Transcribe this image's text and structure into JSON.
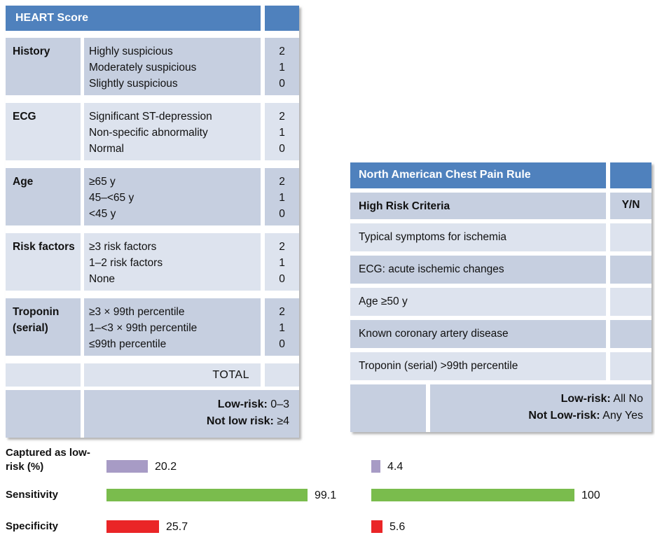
{
  "heart_table": {
    "title": "HEART Score",
    "rows": [
      {
        "category": "History",
        "options": [
          "Highly suspicious",
          "Moderately suspicious",
          "Slightly suspicious"
        ],
        "points": [
          "2",
          "1",
          "0"
        ]
      },
      {
        "category": "ECG",
        "options": [
          "Significant ST-depression",
          "Non-specific abnormality",
          "Normal"
        ],
        "points": [
          "2",
          "1",
          "0"
        ]
      },
      {
        "category": "Age",
        "options": [
          "≥65 y",
          "45–<65 y",
          "<45 y"
        ],
        "points": [
          "2",
          "1",
          "0"
        ]
      },
      {
        "category": "Risk factors",
        "options": [
          "≥3 risk factors",
          "1–2 risk factors",
          "None"
        ],
        "points": [
          "2",
          "1",
          "0"
        ]
      },
      {
        "category": "Troponin (serial)",
        "options": [
          "≥3 × 99th percentile",
          "1–<3 × 99th percentile",
          "≤99th percentile"
        ],
        "points": [
          "2",
          "1",
          "0"
        ]
      }
    ],
    "total_label": "TOTAL",
    "low_risk_label": "Low-risk:",
    "low_risk_value": "0–3",
    "not_low_risk_label": "Not low risk:",
    "not_low_risk_value": "≥4"
  },
  "nacpr_table": {
    "title": "North American Chest Pain Rule",
    "criteria_header": "High Risk Criteria",
    "yn_header": "Y/N",
    "criteria": [
      "Typical symptoms for ischemia",
      "ECG: acute ischemic changes",
      "Age ≥50 y",
      "Known coronary artery disease",
      "Troponin (serial) >99th percentile"
    ],
    "low_risk_label": "Low-risk:",
    "low_risk_value": "All No",
    "not_low_risk_label": "Not Low-risk:",
    "not_low_risk_value": "Any Yes"
  },
  "chart_data": {
    "type": "bar",
    "orientation": "horizontal",
    "categories": [
      "Captured as low-risk (%)",
      "Sensitivity",
      "Specificity"
    ],
    "series": [
      {
        "name": "HEART Score",
        "values": [
          20.2,
          99.1,
          25.7
        ]
      },
      {
        "name": "North American Chest Pain Rule",
        "values": [
          4.4,
          100,
          5.6
        ]
      }
    ],
    "bar_colors": [
      "#a79bc5",
      "#7abc4d",
      "#ea2527"
    ],
    "xlim": [
      0,
      100
    ],
    "value_labels": true,
    "legend": "none",
    "grid": false
  },
  "colors": {
    "header_blue": "#4f81bd",
    "row_dark": "#c6cfe0",
    "row_light": "#dde3ee",
    "captured_purple": "#a79bc5",
    "sensitivity_green": "#7abc4d",
    "specificity_red": "#ea2527"
  }
}
